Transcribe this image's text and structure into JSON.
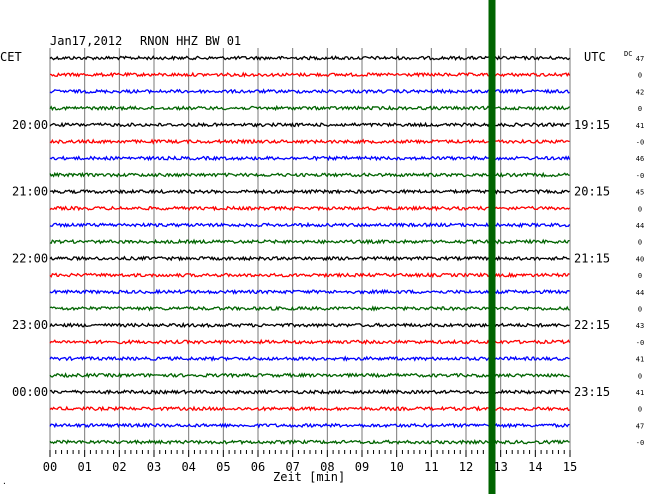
{
  "header": {
    "date": "Jan17,2012",
    "station": "RNON HHZ BW 01",
    "left_tz": "CET",
    "right_tz": "UTC",
    "dc_label": "DC"
  },
  "footer": {
    "xlabel": "Zeit [min]",
    "corner_mark": "."
  },
  "chart_data": {
    "type": "line",
    "title": "Jan17,2012   RNON HHZ BW 01",
    "xlabel": "Zeit [min]",
    "xlim": [
      0,
      15
    ],
    "x_ticks": [
      "00",
      "01",
      "02",
      "03",
      "04",
      "05",
      "06",
      "07",
      "08",
      "09",
      "10",
      "11",
      "12",
      "13",
      "14",
      "15"
    ],
    "trace_count": 24,
    "trace_colors": [
      "#000000",
      "#ff0000",
      "#0000ff",
      "#006400"
    ],
    "left_hour_labels": [
      "20:00",
      "21:00",
      "22:00",
      "23:00",
      "00:00"
    ],
    "left_label_rows": [
      4,
      8,
      12,
      16,
      20
    ],
    "right_hour_labels": [
      "19:15",
      "20:15",
      "21:15",
      "22:15",
      "23:15"
    ],
    "right_label_rows": [
      4,
      8,
      12,
      16,
      20
    ],
    "dc_values": [
      "47",
      "0",
      "42",
      "0",
      "41",
      "-0",
      "46",
      "-0",
      "45",
      "0",
      "44",
      "0",
      "40",
      "0",
      "44",
      "0",
      "43",
      "-0",
      "41",
      "0",
      "41",
      "0",
      "47",
      "-0"
    ],
    "event_marker": {
      "minute": 12.75,
      "color": "#006400",
      "label": ""
    },
    "grid": true
  }
}
